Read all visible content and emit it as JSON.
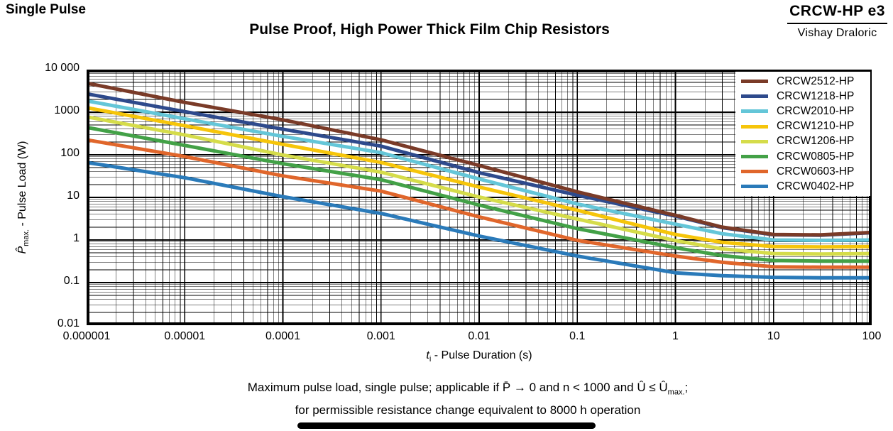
{
  "header": {
    "corner_label": "Single Pulse",
    "title": "Pulse Proof, High Power Thick Film Chip Resistors",
    "brand": {
      "model": "CRCW-HP e3",
      "company": "Vishay Draloric"
    }
  },
  "chart_data": {
    "type": "line",
    "title": "Pulse Proof, High Power Thick Film Chip Resistors",
    "x_scale": "log",
    "y_scale": "log",
    "xlim": [
      1e-06,
      100
    ],
    "ylim": [
      0.01,
      10000
    ],
    "grid": "log major+minor, both axes, black",
    "legend_position": "top-right-inside",
    "xlabel": {
      "var": "t",
      "sub": "i",
      "rest": " - Pulse Duration (s)"
    },
    "ylabel": {
      "var": "P̂",
      "sub": "max.",
      "rest": " - Pulse Load (W)"
    },
    "x_tick_values": [
      1e-06,
      1e-05,
      0.0001,
      0.001,
      0.01,
      0.1,
      1,
      10,
      100
    ],
    "x_tick_labels": [
      "0.000001",
      "0.00001",
      "0.0001",
      "0.001",
      "0.01",
      "0.1",
      "1",
      "10",
      "100"
    ],
    "y_tick_values": [
      10000,
      1000,
      100,
      10,
      1,
      0.1,
      0.01
    ],
    "y_tick_labels": [
      "10 000",
      "1000",
      "100",
      "10",
      "1",
      "0.1",
      "0.01"
    ],
    "x": [
      1e-06,
      1e-05,
      0.0001,
      0.001,
      0.01,
      0.1,
      1,
      3,
      10,
      30,
      100
    ],
    "series": [
      {
        "name": "CRCW2512-HP",
        "color": "#7a3b28",
        "values": [
          4800,
          1700,
          660,
          225,
          56,
          13.5,
          3.8,
          2.0,
          1.35,
          1.32,
          1.5
        ]
      },
      {
        "name": "CRCW1218-HP",
        "color": "#2e4a8c",
        "values": [
          2700,
          1030,
          400,
          160,
          38,
          11.2,
          3.65,
          1.95,
          1.33,
          1.3,
          1.48
        ]
      },
      {
        "name": "CRCW2010-HP",
        "color": "#64c6d8",
        "values": [
          1850,
          700,
          270,
          112,
          27,
          7.0,
          2.35,
          1.4,
          1.0,
          0.98,
          1.0
        ]
      },
      {
        "name": "CRCW1210-HP",
        "color": "#f6c50a",
        "values": [
          1280,
          480,
          176,
          66,
          17.5,
          5.0,
          1.35,
          0.88,
          0.7,
          0.69,
          0.7
        ]
      },
      {
        "name": "CRCW1206-HP",
        "color": "#d5dc4a",
        "values": [
          780,
          292,
          99,
          39,
          10.2,
          3.1,
          0.97,
          0.62,
          0.48,
          0.47,
          0.48
        ]
      },
      {
        "name": "CRCW0805-HP",
        "color": "#43a147",
        "values": [
          440,
          166,
          62,
          26,
          6.6,
          1.85,
          0.66,
          0.43,
          0.33,
          0.32,
          0.32
        ]
      },
      {
        "name": "CRCW0603-HP",
        "color": "#e0662b",
        "values": [
          225,
          91,
          32,
          14,
          3.5,
          0.98,
          0.42,
          0.3,
          0.235,
          0.23,
          0.23
        ]
      },
      {
        "name": "CRCW0402-HP",
        "color": "#2a7ab9",
        "values": [
          66,
          29,
          10.4,
          4.2,
          1.24,
          0.42,
          0.17,
          0.145,
          0.133,
          0.13,
          0.13
        ]
      }
    ]
  },
  "caption": {
    "line1": {
      "pre": "Maximum pulse load, single pulse; applicable if P̄ → 0 and n < 1000 and Û ≤ Û",
      "sub": "max.",
      "post": ";"
    },
    "line2": "for permissible resistance change equivalent to 8000 h operation"
  }
}
